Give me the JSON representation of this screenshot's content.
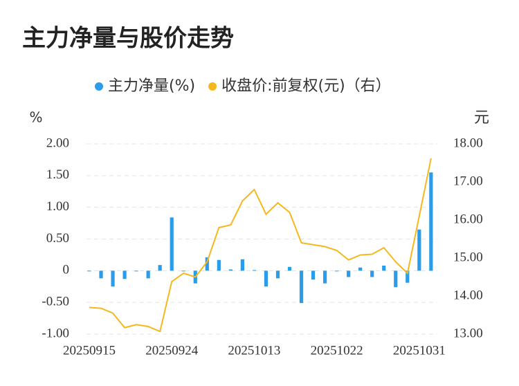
{
  "chart_data": {
    "type": "bar_line",
    "title": "主力净量与股价走势",
    "y_label": "%",
    "y2_label": "元",
    "categories": [
      "20250915",
      null,
      null,
      null,
      null,
      null,
      null,
      "20250924",
      null,
      null,
      null,
      null,
      null,
      null,
      "20251013",
      null,
      null,
      null,
      null,
      null,
      null,
      "20251022",
      null,
      null,
      null,
      null,
      null,
      null,
      "20251031",
      null
    ],
    "series": [
      {
        "name": "主力净量(%)",
        "type": "bar",
        "color": "#2b9ce8",
        "axis": "y",
        "values": [
          -0.01,
          -0.12,
          -0.25,
          -0.13,
          0,
          -0.12,
          0.09,
          0.84,
          -0.01,
          -0.2,
          0.21,
          0.17,
          0.02,
          0.18,
          0.01,
          -0.25,
          -0.12,
          0.06,
          -0.51,
          -0.14,
          -0.2,
          0,
          -0.1,
          0.05,
          -0.1,
          0.08,
          -0.26,
          -0.19,
          0.65,
          1.55
        ]
      },
      {
        "name": "收盘价:前复权(元)（右）",
        "type": "line",
        "color": "#f5b81c",
        "axis": "y2",
        "values": [
          13.7,
          13.68,
          13.55,
          13.17,
          13.25,
          13.2,
          13.07,
          14.38,
          14.6,
          14.5,
          14.9,
          15.8,
          15.87,
          16.5,
          16.8,
          16.15,
          16.45,
          16.2,
          15.4,
          15.35,
          15.3,
          15.2,
          14.95,
          15.08,
          15.1,
          15.27,
          14.9,
          14.6,
          16.1,
          17.62
        ]
      }
    ],
    "ylim": [
      -1,
      2
    ],
    "yticks": [
      {
        "value": -1,
        "label": "-1.00"
      },
      {
        "value": -0.5,
        "label": "-0.50"
      },
      0,
      {
        "value": 0.5,
        "label": "0.50"
      },
      {
        "value": 1,
        "label": "1.00"
      },
      {
        "value": 1.5,
        "label": "1.50"
      },
      {
        "value": 2,
        "label": "2.00"
      }
    ],
    "y2lim": [
      13,
      18
    ],
    "y2ticks": [
      {
        "value": 13,
        "label": "13.00"
      },
      {
        "value": 14,
        "label": "14.00"
      },
      {
        "value": 15,
        "label": "15.00"
      },
      {
        "value": 16,
        "label": "16.00"
      },
      {
        "value": 17,
        "label": "17.00"
      },
      {
        "value": 18,
        "label": "18.00"
      }
    ],
    "grid": true,
    "legend": "top"
  }
}
